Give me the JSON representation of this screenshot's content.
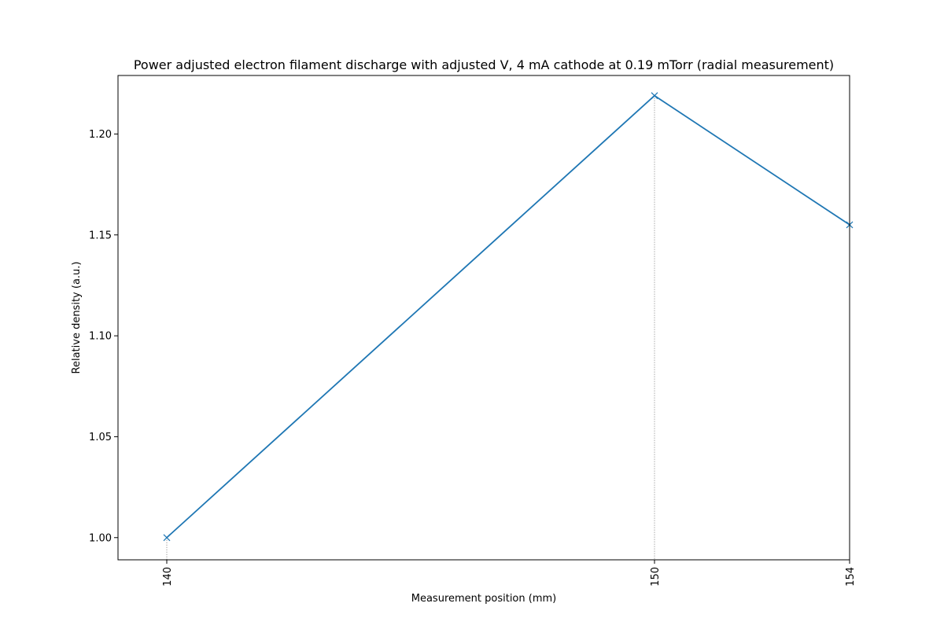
{
  "chart_data": {
    "type": "line",
    "title": "Power adjusted electron filament discharge with adjusted V, 4 mA cathode at 0.19 mTorr (radial measurement)",
    "xlabel": "Measurement position (mm)",
    "ylabel": "Relative density (a.u.)",
    "x": [
      140,
      150,
      154
    ],
    "xticks": [
      "140",
      "150",
      "154"
    ],
    "yticks": [
      "1.00",
      "1.05",
      "1.10",
      "1.15",
      "1.20"
    ],
    "ytick_values": [
      1.0,
      1.05,
      1.1,
      1.15,
      1.2
    ],
    "xlim": [
      139.0,
      154.0
    ],
    "ylim": [
      0.989,
      1.229
    ],
    "series": [
      {
        "values": [
          1.0,
          1.219,
          1.155
        ],
        "color": "#1f77b4",
        "marker": "x"
      }
    ],
    "vertical_guides": [
      140,
      150,
      154
    ],
    "guide_color": "#808080",
    "grid": false,
    "legend": "none"
  }
}
